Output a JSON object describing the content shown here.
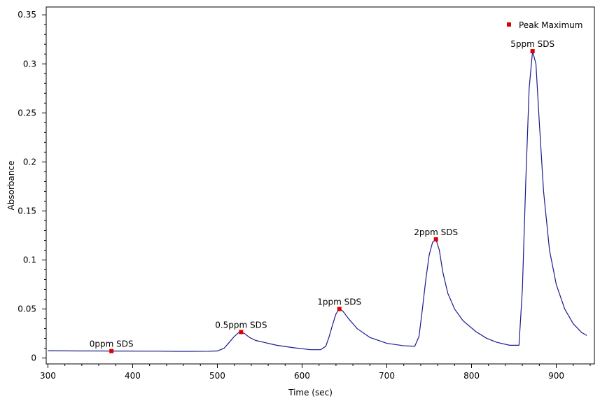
{
  "chart_data": {
    "type": "line",
    "title": "",
    "xlabel": "Time (sec)",
    "ylabel": "Absorbance",
    "xlim": [
      298,
      945
    ],
    "ylim": [
      -0.006,
      0.358
    ],
    "x_ticks": [
      300,
      400,
      500,
      600,
      700,
      800,
      900
    ],
    "y_ticks": [
      0,
      0.05,
      0.1,
      0.15,
      0.2,
      0.25,
      0.3,
      0.35
    ],
    "x_tick_labels": [
      "300",
      "400",
      "500",
      "600",
      "700",
      "800",
      "900"
    ],
    "y_tick_labels": [
      "0",
      "0.05",
      "0.1",
      "0.15",
      "0.2",
      "0.25",
      "0.3",
      "0.35"
    ],
    "grid": false,
    "legend": {
      "position": "top-right",
      "entries": [
        {
          "label": "Peak Maximum",
          "marker": "square",
          "color": "#dd0000"
        }
      ]
    },
    "colors": {
      "line": "#1a1a8c",
      "peak_marker": "#dd0000"
    },
    "series": [
      {
        "x": [
          300,
          320,
          340,
          360,
          375,
          390,
          410,
          430,
          450,
          470,
          490,
          500,
          508,
          514,
          520,
          525,
          528,
          532,
          538,
          545,
          555,
          570,
          590,
          610,
          622,
          628,
          632,
          636,
          640,
          644,
          648,
          655,
          665,
          680,
          700,
          720,
          733,
          738,
          742,
          746,
          750,
          754,
          758,
          762,
          766,
          772,
          780,
          790,
          805,
          818,
          830,
          845,
          856,
          860,
          864,
          868,
          872,
          876,
          880,
          885,
          892,
          900,
          910,
          920,
          930,
          936
        ],
        "y": [
          0.0075,
          0.0073,
          0.0072,
          0.0072,
          0.0071,
          0.0071,
          0.007,
          0.007,
          0.0068,
          0.0068,
          0.0069,
          0.0072,
          0.01,
          0.016,
          0.022,
          0.0258,
          0.0265,
          0.025,
          0.021,
          0.018,
          0.016,
          0.013,
          0.0105,
          0.0085,
          0.0085,
          0.012,
          0.022,
          0.034,
          0.045,
          0.05,
          0.048,
          0.04,
          0.03,
          0.021,
          0.015,
          0.0125,
          0.012,
          0.022,
          0.05,
          0.08,
          0.105,
          0.118,
          0.121,
          0.11,
          0.088,
          0.066,
          0.05,
          0.038,
          0.027,
          0.02,
          0.016,
          0.013,
          0.013,
          0.07,
          0.18,
          0.275,
          0.313,
          0.3,
          0.24,
          0.17,
          0.11,
          0.075,
          0.05,
          0.035,
          0.026,
          0.023
        ]
      }
    ],
    "peaks": [
      {
        "label": "0ppm SDS",
        "x": 375,
        "y": 0.0071
      },
      {
        "label": "0.5ppm SDS",
        "x": 528,
        "y": 0.0265
      },
      {
        "label": "1ppm SDS",
        "x": 644,
        "y": 0.05
      },
      {
        "label": "2ppm SDS",
        "x": 758,
        "y": 0.121
      },
      {
        "label": "5ppm SDS",
        "x": 872,
        "y": 0.313
      }
    ]
  }
}
